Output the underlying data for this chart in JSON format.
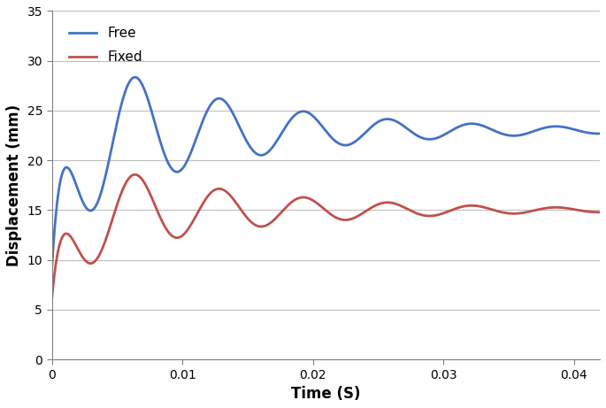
{
  "title": "",
  "xlabel": "Time (S)",
  "ylabel": "Displacement (mm)",
  "xlim": [
    0,
    0.042
  ],
  "ylim": [
    0,
    35
  ],
  "xticks": [
    0,
    0.01,
    0.02,
    0.03,
    0.04
  ],
  "yticks": [
    0,
    5,
    10,
    15,
    20,
    25,
    30,
    35
  ],
  "free_color": "#4472C4",
  "fixed_color": "#C0504D",
  "free_label": "Free",
  "fixed_label": "Fixed",
  "line_width": 2.0,
  "background_color": "#FFFFFF",
  "grid_color": "#BFBFBF",
  "free_params": {
    "rise_tau": 0.001,
    "steady_state": 23.0,
    "initial_amplitude": 9.0,
    "decay_rate": 80,
    "frequency": 155,
    "phase": 1.57
  },
  "fixed_params": {
    "rise_tau": 0.001,
    "steady_state": 15.0,
    "initial_amplitude": 6.0,
    "decay_rate": 80,
    "frequency": 155,
    "phase": 1.57
  }
}
